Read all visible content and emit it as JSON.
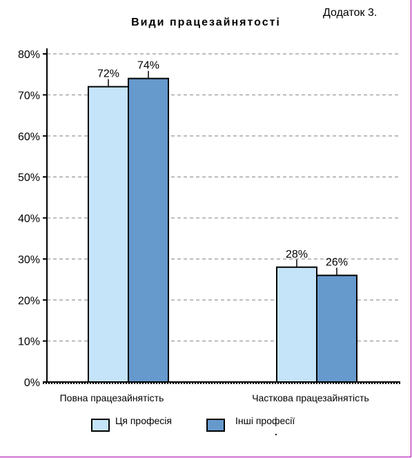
{
  "appendix_label": "Додаток 3.",
  "chart_data": {
    "type": "bar",
    "title": "Види працезайнятості",
    "categories": [
      "Повна працезайнятість",
      "Часткова працезайнятість"
    ],
    "series": [
      {
        "name": "Ця професія",
        "values": [
          72,
          28
        ],
        "color": "#c5e4f9"
      },
      {
        "name": "Інші професії",
        "values": [
          74,
          26
        ],
        "color": "#6699cc"
      }
    ],
    "data_labels": [
      [
        "72%",
        "28%"
      ],
      [
        "74%",
        "26%"
      ]
    ],
    "y_ticks": [
      "0%",
      "10%",
      "20%",
      "30%",
      "40%",
      "50%",
      "60%",
      "70%",
      "80%"
    ],
    "ylim": [
      0,
      80
    ],
    "grid": true,
    "legend": "bottom"
  }
}
